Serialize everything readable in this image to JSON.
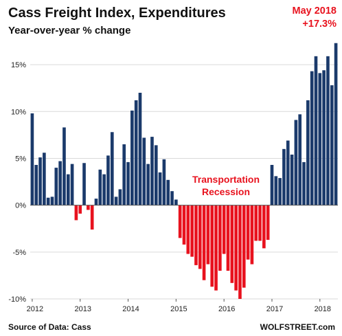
{
  "chart_data": {
    "type": "bar",
    "title": "Cass Freight Index, Expenditures",
    "subtitle": "Year-over-year % change",
    "annotation_latest": {
      "label": "May 2018",
      "value_text": "+17.3%"
    },
    "annotation_recession": [
      "Transportation",
      "Recession"
    ],
    "source": "Source of Data: Cass",
    "brand": "WOLFSTREET.com",
    "ylim": [
      -10,
      17.5
    ],
    "yticks": [
      -10,
      -5,
      0,
      5,
      10,
      15
    ],
    "ytick_labels": [
      "-10%",
      "-5%",
      "0%",
      "5%",
      "10%",
      "15%"
    ],
    "xtick_labels": [
      "2012",
      "2013",
      "2014",
      "2015",
      "2016",
      "2017",
      "2018"
    ],
    "grid": true,
    "colors": {
      "positive": "#1b3a6b",
      "negative": "#e8121e",
      "grid": "#d9d9d9",
      "axis": "#555555"
    },
    "start": "2012-01",
    "values": [
      9.8,
      4.3,
      5.1,
      5.6,
      0.8,
      0.9,
      4.0,
      4.7,
      8.3,
      3.3,
      4.4,
      -1.6,
      -0.9,
      4.5,
      -0.5,
      -2.6,
      0.7,
      3.8,
      3.3,
      5.3,
      7.8,
      0.9,
      1.7,
      6.5,
      4.6,
      10.1,
      11.2,
      12.0,
      7.2,
      4.4,
      7.3,
      6.4,
      3.5,
      4.9,
      2.7,
      1.5,
      0.6,
      -3.5,
      -4.2,
      -5.2,
      -5.5,
      -6.4,
      -6.8,
      -8.0,
      -6.3,
      -8.7,
      -9.1,
      -7.0,
      -5.2,
      -7.0,
      -8.3,
      -9.1,
      -10.0,
      -8.8,
      -5.8,
      -6.3,
      -3.8,
      -3.8,
      -4.6,
      -3.7,
      4.3,
      3.1,
      2.9,
      6.0,
      6.9,
      5.4,
      9.1,
      9.7,
      4.6,
      11.2,
      14.3,
      15.9,
      14.1,
      14.4,
      15.9,
      12.8,
      17.3
    ]
  }
}
